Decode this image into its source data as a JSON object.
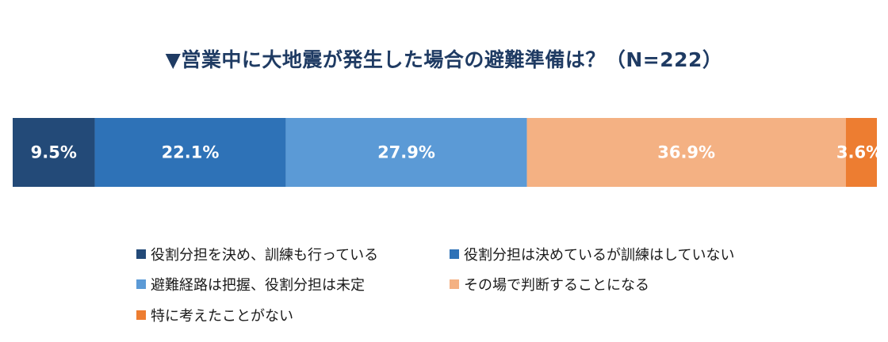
{
  "chart_data": {
    "type": "bar",
    "orientation": "horizontal-stacked-100",
    "title": "▼営業中に大地震が発生した場合の避難準備は？（N=222）",
    "series": [
      {
        "name": "役割分担を決め、訓練も行っている",
        "value": 9.5,
        "label": "9.5%",
        "color": "#234a78"
      },
      {
        "name": "役割分担は決めているが訓練はしていない",
        "value": 22.1,
        "label": "22.1%",
        "color": "#2e72b7"
      },
      {
        "name": "避難経路は把握、役割分担は未定",
        "value": 27.9,
        "label": "27.9%",
        "color": "#5b9ad6"
      },
      {
        "name": "その場で判断することになる",
        "value": 36.9,
        "label": "36.9%",
        "color": "#f4b183"
      },
      {
        "name": "特に考えたことがない",
        "value": 3.6,
        "label": "3.6%",
        "color": "#ed7d31"
      }
    ],
    "legend_position": "bottom"
  }
}
